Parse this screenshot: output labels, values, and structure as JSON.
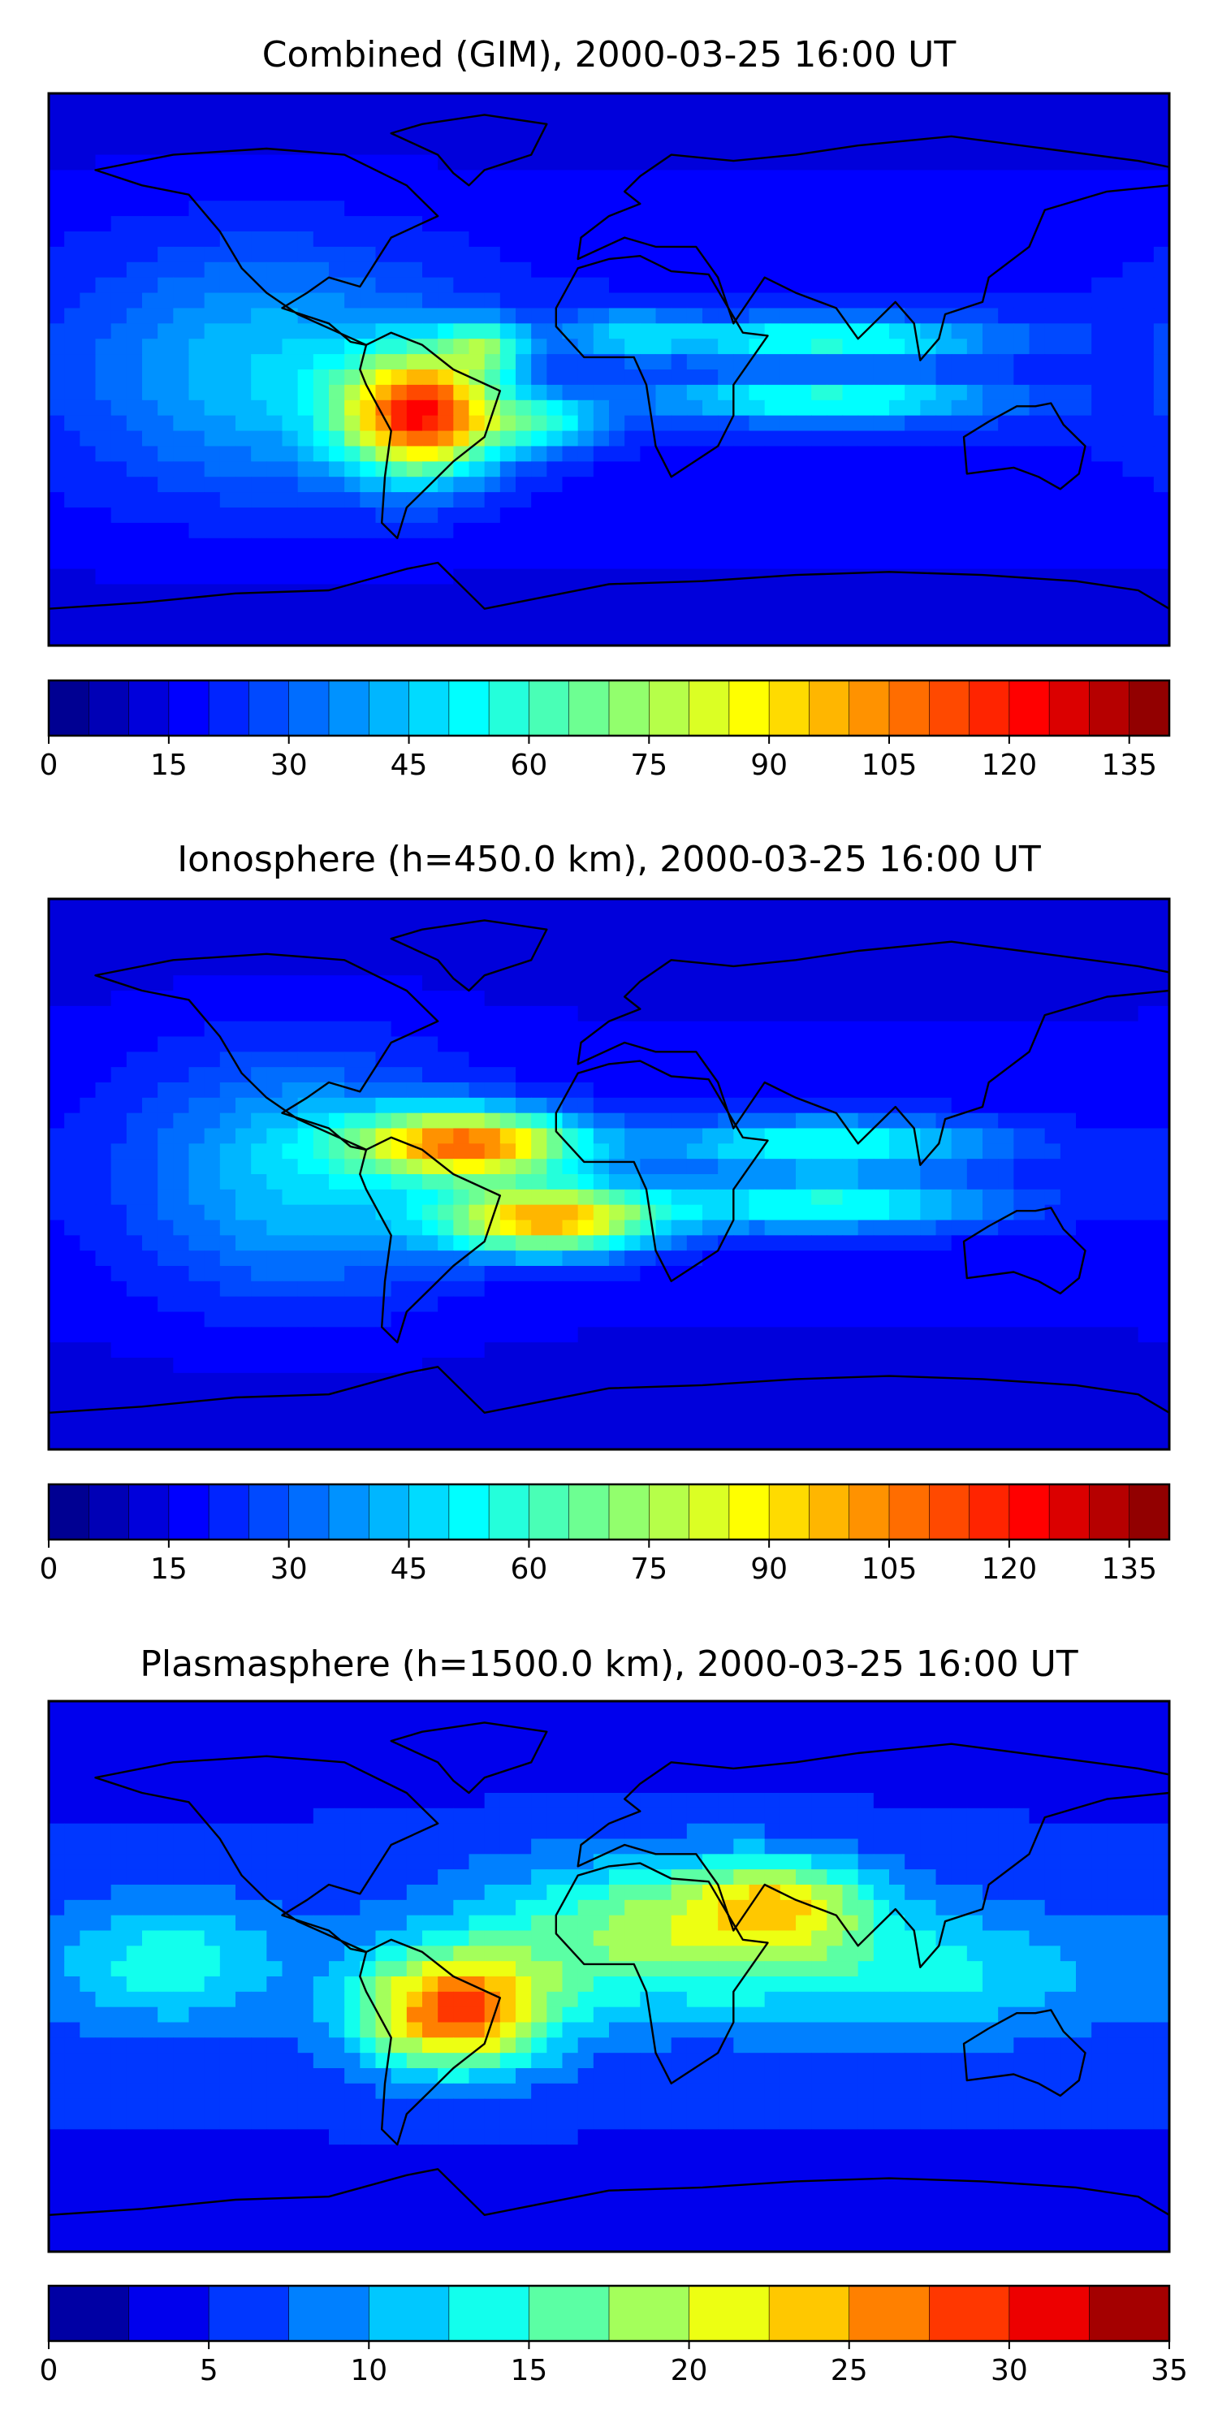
{
  "chart_data": [
    {
      "type": "heatmap",
      "subtype": "filled-contour-world-map",
      "title": "Combined (GIM), 2000-03-25 16:00 UT",
      "xlabel": "",
      "ylabel": "",
      "colorbar": {
        "ticks": [
          0,
          15,
          30,
          45,
          60,
          75,
          90,
          105,
          120,
          135
        ],
        "tick_labels": [
          "0",
          "15",
          "30",
          "45",
          "60",
          "75",
          "90",
          "105",
          "120",
          "135"
        ],
        "range": [
          0,
          140
        ],
        "levels": 28
      },
      "field": {
        "background": 20,
        "centers": [
          {
            "lon": -60,
            "lat": -15,
            "value": 95,
            "slon": 18,
            "slat": 14
          },
          {
            "lon": -40,
            "lat": 8,
            "value": 35,
            "slon": 10,
            "slat": 6
          },
          {
            "lon": -20,
            "lat": -18,
            "value": 32,
            "slon": 14,
            "slat": 6
          },
          {
            "lon": 5,
            "lat": 12,
            "value": 20,
            "slon": 14,
            "slat": 6
          },
          {
            "lon": 70,
            "lat": 10,
            "value": 40,
            "slon": 40,
            "slat": 5
          },
          {
            "lon": 70,
            "lat": -10,
            "value": 40,
            "slon": 40,
            "slat": 5
          },
          {
            "lon": -110,
            "lat": 0,
            "value": 25,
            "slon": 40,
            "slat": 30
          }
        ]
      }
    },
    {
      "type": "heatmap",
      "subtype": "filled-contour-world-map",
      "title": "Ionosphere  (h=450.0 km), 2000-03-25 16:00 UT",
      "xlabel": "",
      "ylabel": "",
      "colorbar": {
        "ticks": [
          0,
          15,
          30,
          45,
          60,
          75,
          90,
          105,
          120,
          135
        ],
        "tick_labels": [
          "0",
          "15",
          "30",
          "45",
          "60",
          "75",
          "90",
          "105",
          "120",
          "135"
        ],
        "range": [
          0,
          140
        ],
        "levels": 28
      },
      "field": {
        "background": 18,
        "centers": [
          {
            "lon": -45,
            "lat": 10,
            "value": 85,
            "slon": 25,
            "slat": 8
          },
          {
            "lon": -20,
            "lat": -15,
            "value": 80,
            "slon": 25,
            "slat": 8
          },
          {
            "lon": 70,
            "lat": 10,
            "value": 40,
            "slon": 40,
            "slat": 6
          },
          {
            "lon": 70,
            "lat": -10,
            "value": 40,
            "slon": 40,
            "slat": 6
          },
          {
            "lon": -100,
            "lat": 0,
            "value": 28,
            "slon": 35,
            "slat": 30
          }
        ]
      }
    },
    {
      "type": "heatmap",
      "subtype": "filled-contour-world-map",
      "title": "Plasmasphere (h=1500.0 km), 2000-03-25 16:00 UT",
      "xlabel": "",
      "ylabel": "",
      "colorbar": {
        "ticks": [
          0,
          5,
          10,
          15,
          20,
          25,
          30,
          35
        ],
        "tick_labels": [
          "0",
          "5",
          "10",
          "15",
          "20",
          "25",
          "30",
          "35"
        ],
        "range": [
          0,
          35
        ],
        "levels": 14
      },
      "field": {
        "background": 6,
        "centers": [
          {
            "lon": -50,
            "lat": -12,
            "value": 22,
            "slon": 22,
            "slat": 14
          },
          {
            "lon": 20,
            "lat": 15,
            "value": 13,
            "slon": 45,
            "slat": 18
          },
          {
            "lon": 55,
            "lat": 25,
            "value": 10,
            "slon": 20,
            "slat": 10
          },
          {
            "lon": -140,
            "lat": 5,
            "value": 8,
            "slon": 25,
            "slat": 15
          },
          {
            "lon": 110,
            "lat": 0,
            "value": 6,
            "slon": 40,
            "slat": 15
          }
        ]
      }
    }
  ]
}
